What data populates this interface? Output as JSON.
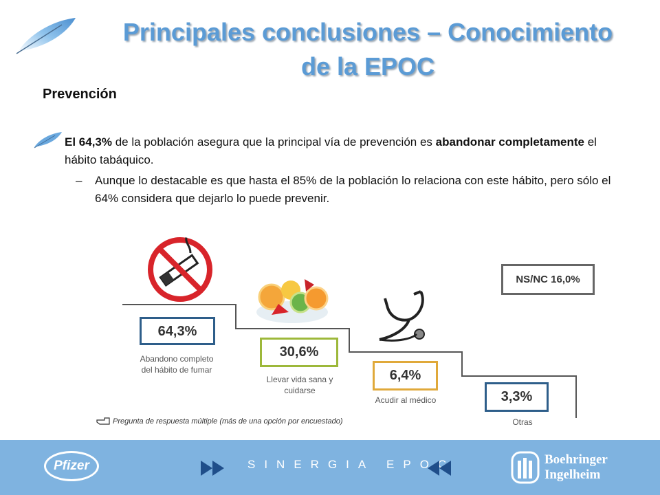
{
  "header": {
    "title_line1": "Principales conclusiones – Conocimiento",
    "title_line2": "de la EPOC"
  },
  "section_title": "Prevención",
  "bullet": {
    "part1": "El 64,3%",
    "part2": " de la población asegura que la principal vía de prevención es  ",
    "part3": "abandonar completamente",
    "part4": " el hábito tabáquico."
  },
  "sub_bullet": {
    "dash": "–",
    "text": "Aunque lo destacable es que hasta el 85% de la población lo relaciona con este hábito, pero sólo el 64% considera que dejarlo lo puede prevenir."
  },
  "chart_data": {
    "type": "bar",
    "categories": [
      "Abandono completo del hábito de fumar",
      "Llevar vida sana y cuidarse",
      "Acudir al médico",
      "Otras"
    ],
    "values": [
      64.3,
      30.6,
      6.4,
      3.3
    ],
    "value_labels": [
      "64,3%",
      "30,6%",
      "6,4%",
      "3,3%"
    ],
    "box_colors": [
      "#2e5e8a",
      "#9db83a",
      "#e0a93a",
      "#2e5e8a"
    ],
    "nsnc_label": "NS/NC 16,0%"
  },
  "note": {
    "text": "Pregunta de respuesta múltiple (más de una opción por encuestado)"
  },
  "footer": {
    "left_logo": "Pfizer",
    "center_text": "SINERGIA EPOC",
    "right_logo_line1": "Boehringer",
    "right_logo_line2": "Ingelheim"
  },
  "colors": {
    "title": "#5b9bd5",
    "footer": "#7fb3e0"
  }
}
